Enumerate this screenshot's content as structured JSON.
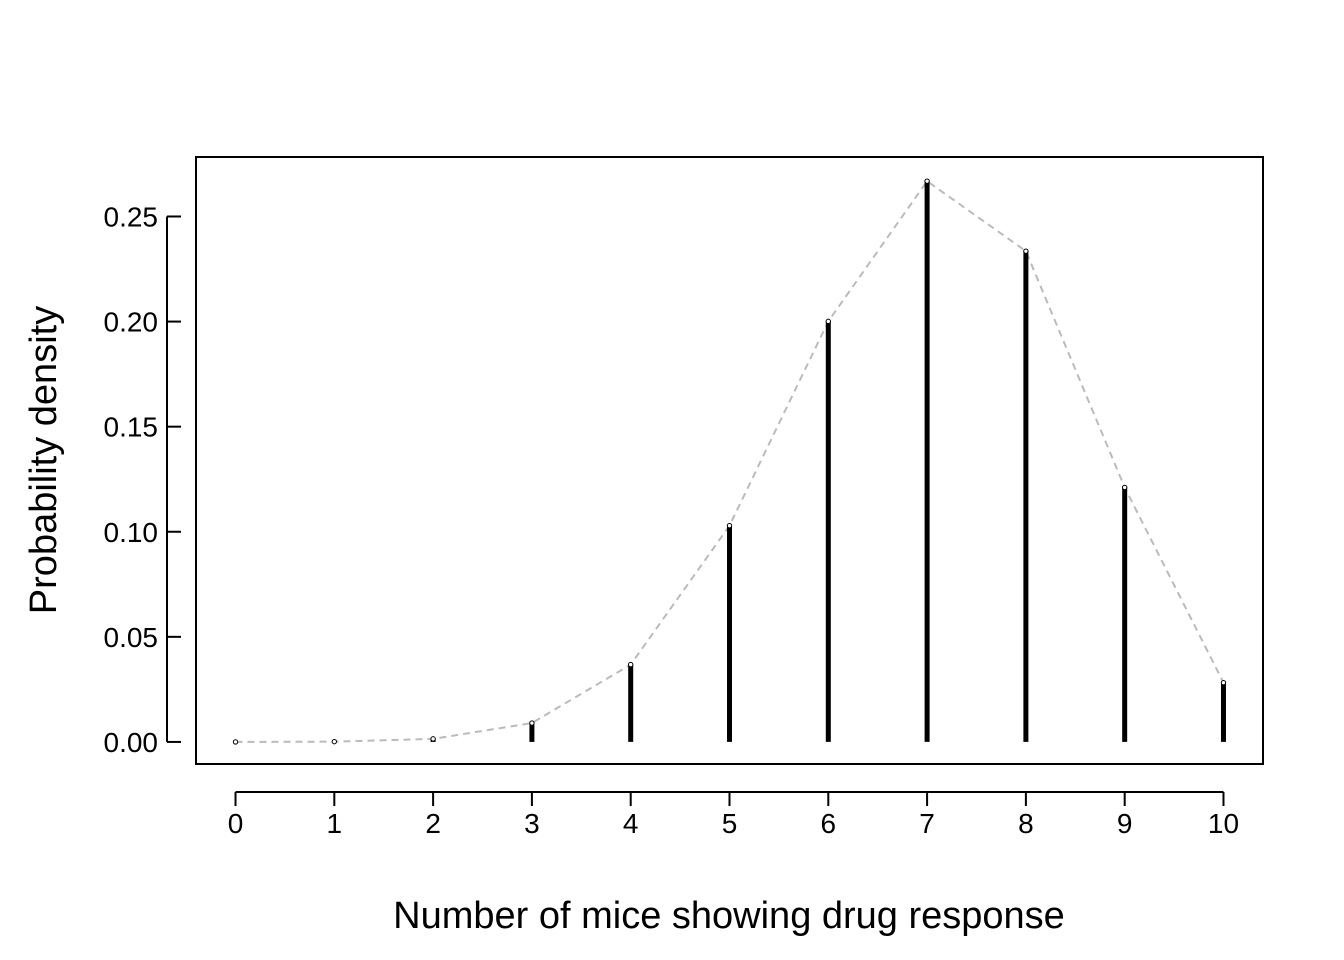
{
  "chart_data": {
    "type": "bar",
    "title": "",
    "xlabel": "Number of mice showing drug response",
    "ylabel": "Probability density",
    "x": [
      0,
      1,
      2,
      3,
      4,
      5,
      6,
      7,
      8,
      9,
      10
    ],
    "x_tick_labels": [
      "0",
      "1",
      "2",
      "3",
      "4",
      "5",
      "6",
      "7",
      "8",
      "9",
      "10"
    ],
    "values": [
      5.9e-06,
      0.000138,
      0.00145,
      0.009,
      0.0368,
      0.1029,
      0.2001,
      0.2668,
      0.2335,
      0.1211,
      0.0282
    ],
    "ylim": [
      -0.0105,
      0.2783
    ],
    "xlim": [
      -0.4,
      10.4
    ],
    "y_ticks": [
      0.0,
      0.05,
      0.1,
      0.15,
      0.2,
      0.25
    ],
    "y_tick_labels": [
      "0.00",
      "0.05",
      "0.10",
      "0.15",
      "0.20",
      "0.25"
    ],
    "grid": false,
    "series_styles": {
      "bars": "black vertical lines (type h)",
      "line": "grey dashed line connecting points",
      "line_color": "#bbbbbb",
      "bar_color": "#000000"
    }
  }
}
